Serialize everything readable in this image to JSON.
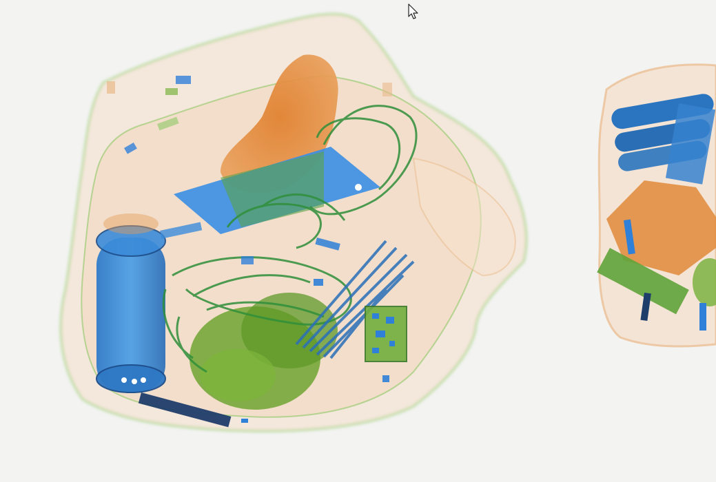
{
  "viewer": {
    "mode": "baggage-xray-scan",
    "colors": {
      "background": "#f3f3f2",
      "organic": "#e08a3a",
      "mixed": "#7cb342",
      "inorganic": "#2f80d8",
      "dense-metal": "#1d3f9a"
    }
  },
  "cursor": {
    "icon": "mouse-pointer-icon"
  }
}
